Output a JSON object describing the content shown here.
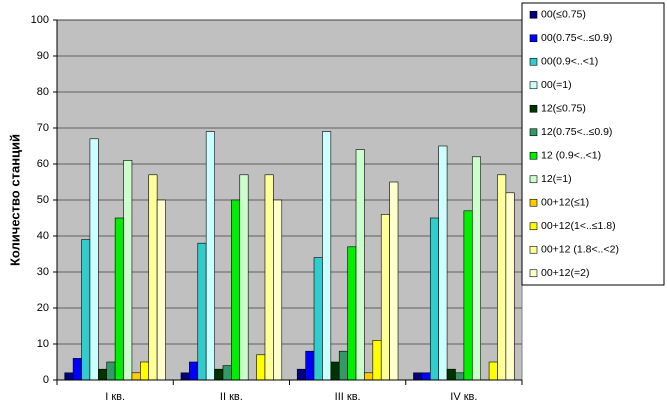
{
  "chart_data": {
    "type": "bar",
    "y_label": "Количество станций",
    "categories": [
      "I кв.",
      "II кв.",
      "III кв.",
      "IV кв."
    ],
    "ylim": [
      0,
      100
    ],
    "yticks": [
      0,
      10,
      20,
      30,
      40,
      50,
      60,
      70,
      80,
      90,
      100
    ],
    "grid": true,
    "legend": "right",
    "series": [
      {
        "name": "00(≤0.75)",
        "color": "#000080",
        "values": [
          2,
          2,
          3,
          2
        ]
      },
      {
        "name": "00(0.75<..≤0.9)",
        "color": "#0000ff",
        "values": [
          6,
          5,
          8,
          2
        ]
      },
      {
        "name": "00(0.9<..<1)",
        "color": "#33cccc",
        "values": [
          39,
          38,
          34,
          45
        ]
      },
      {
        "name": "00(=1)",
        "color": "#ccffff",
        "values": [
          67,
          69,
          69,
          65
        ]
      },
      {
        "name": "12(≤0.75)",
        "color": "#003300",
        "values": [
          3,
          3,
          5,
          3
        ]
      },
      {
        "name": "12(0.75<..≤0.9)",
        "color": "#339966",
        "values": [
          5,
          4,
          8,
          2
        ]
      },
      {
        "name": "12 (0.9<..<1)",
        "color": "#00ee00",
        "values": [
          45,
          50,
          37,
          47
        ]
      },
      {
        "name": "12(=1)",
        "color": "#ccffcc",
        "values": [
          61,
          57,
          64,
          62
        ]
      },
      {
        "name": "00+12(≤1)",
        "color": "#ffcc00",
        "values": [
          2,
          0,
          2,
          0
        ]
      },
      {
        "name": "00+12(1<..≤1.8)",
        "color": "#ffff00",
        "values": [
          5,
          7,
          11,
          5
        ]
      },
      {
        "name": "00+12 (1.8<..<2)",
        "color": "#ffff99",
        "values": [
          57,
          57,
          46,
          57
        ]
      },
      {
        "name": "00+12(=2)",
        "color": "#ffffcc",
        "values": [
          50,
          50,
          55,
          52
        ]
      }
    ]
  }
}
